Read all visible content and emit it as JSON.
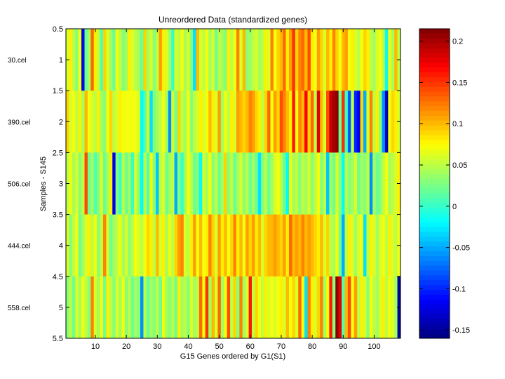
{
  "chart_data": {
    "type": "heatmap",
    "title": "Unreordered Data (standardized genes)",
    "xlabel": "G15 Genes ordered by G1(S1)",
    "ylabel": "Samples - S145",
    "xlim": [
      0.5,
      108.5
    ],
    "ylim": [
      0.5,
      5.5
    ],
    "x_ticks": [
      10,
      20,
      30,
      40,
      50,
      60,
      70,
      80,
      90,
      100
    ],
    "x_tick_labels": [
      "10",
      "20",
      "30",
      "40",
      "50",
      "60",
      "70",
      "80",
      "90",
      "100"
    ],
    "y_ticks": [
      0.5,
      1,
      1.5,
      2,
      2.5,
      3,
      3.5,
      4,
      4.5,
      5,
      5.5
    ],
    "y_tick_labels": [
      "0.5",
      "1",
      "1.5",
      "2",
      "2.5",
      "3",
      "3.5",
      "4",
      "4.5",
      "5",
      "5.5"
    ],
    "row_labels": [
      "30.cel",
      "390.cel",
      "506.cel",
      "444.cel",
      "558.cel"
    ],
    "colorbar": {
      "colormap": "jet",
      "min": -0.16,
      "max": 0.215,
      "ticks": [
        0.2,
        0.15,
        0.1,
        0.05,
        0,
        -0.05,
        -0.1,
        -0.15
      ],
      "tick_labels": [
        "0.2",
        "0.15",
        "0.1",
        "0.05",
        "0",
        "-0.05",
        "-0.1",
        "-0.15"
      ]
    },
    "num_genes": 108,
    "values": [
      [
        0.06,
        0.08,
        0.05,
        0.03,
        0.07,
        -0.12,
        0.02,
        0.04,
        0.13,
        0.08,
        0.05,
        0.01,
        0.09,
        0.06,
        0.04,
        0.02,
        0.07,
        0.05,
        0.03,
        0.04,
        0.08,
        0.06,
        0.05,
        0.04,
        0.02,
        0.09,
        0.04,
        0.06,
        0.03,
        0.05,
        0.11,
        0.08,
        0.06,
        0.04,
        0.0,
        0.06,
        0.05,
        0.07,
        0.04,
        0.06,
        0.03,
        -0.03,
        0.1,
        0.06,
        0.05,
        0.07,
        0.04,
        0.06,
        0.02,
        0.05,
        0.04,
        0.03,
        0.08,
        0.05,
        0.07,
        0.12,
        0.06,
        0.1,
        0.03,
        0.04,
        0.05,
        0.06,
        0.04,
        0.05,
        0.08,
        0.06,
        0.12,
        0.07,
        0.09,
        0.1,
        0.13,
        0.08,
        0.11,
        0.15,
        0.09,
        0.12,
        0.13,
        0.1,
        0.14,
        0.08,
        0.07,
        0.11,
        0.09,
        0.06,
        0.1,
        0.08,
        0.12,
        0.09,
        0.07,
        0.1,
        0.11,
        0.07,
        0.08,
        0.06,
        0.05,
        0.07,
        0.09,
        0.08,
        0.05,
        0.04,
        0.06,
        0.07,
        0.05,
        -0.02,
        0.07,
        0.04,
        0.1,
        0.05
      ],
      [
        0.09,
        0.06,
        0.07,
        0.05,
        0.08,
        0.04,
        0.1,
        0.07,
        0.06,
        0.05,
        0.08,
        0.04,
        0.03,
        0.07,
        0.09,
        0.05,
        0.06,
        0.08,
        0.07,
        0.07,
        0.07,
        0.07,
        0.07,
        0.06,
        -0.02,
        0.01,
        0.06,
        -0.03,
        0.03,
        0.04,
        0.05,
        0.07,
        0.04,
        -0.06,
        0.06,
        0.02,
        0.09,
        0.05,
        0.04,
        0.07,
        0.03,
        0.05,
        0.06,
        0.08,
        0.06,
        0.07,
        0.1,
        0.08,
        0.06,
        0.11,
        0.04,
        0.07,
        0.05,
        0.08,
        0.06,
        0.11,
        0.1,
        0.09,
        0.1,
        0.12,
        0.11,
        0.09,
        0.08,
        0.05,
        0.09,
        0.13,
        0.07,
        0.11,
        0.09,
        0.14,
        0.12,
        0.1,
        0.08,
        0.16,
        0.07,
        0.12,
        0.1,
        0.17,
        0.09,
        0.13,
        0.05,
        0.18,
        0.1,
        0.06,
        0.14,
        0.19,
        0.2,
        0.21,
        0.02,
        0.15,
        0.0,
        -0.08,
        0.05,
        -0.1,
        -0.12,
        0.09,
        -0.05,
        0.06,
        0.12,
        0.05,
        0.08,
        0.03,
        -0.06,
        -0.14,
        0.07,
        0.09,
        0.08,
        0.06
      ],
      [
        0.05,
        0.07,
        0.04,
        0.06,
        0.03,
        0.05,
        0.14,
        0.02,
        0.04,
        0.01,
        0.03,
        0.06,
        0.02,
        0.04,
        0.08,
        -0.12,
        0.03,
        0.0,
        0.05,
        0.02,
        0.04,
        0.0,
        0.06,
        0.03,
        -0.02,
        0.05,
        0.01,
        0.07,
        0.03,
        -0.04,
        0.05,
        0.06,
        0.02,
        0.04,
        0.05,
        -0.05,
        0.03,
        0.0,
        0.04,
        0.07,
        0.05,
        0.02,
        0.03,
        -0.02,
        0.06,
        0.04,
        0.07,
        0.03,
        0.05,
        0.02,
        0.04,
        0.09,
        0.03,
        0.05,
        0.02,
        0.04,
        0.06,
        0.03,
        0.05,
        0.02,
        0.04,
        0.02,
        -0.03,
        0.03,
        0.05,
        0.02,
        0.04,
        0.06,
        0.07,
        0.05,
        0.02,
        -0.02,
        0.07,
        0.04,
        0.05,
        0.03,
        0.05,
        0.04,
        0.06,
        0.03,
        0.05,
        0.07,
        0.03,
        0.05,
        -0.04,
        0.04,
        0.02,
        0.06,
        0.03,
        -0.02,
        0.05,
        0.03,
        0.04,
        0.06,
        0.02,
        0.04,
        0.03,
        0.05,
        -0.06,
        0.04,
        0.02,
        0.03,
        0.05,
        0.07,
        0.04,
        0.05,
        0.06,
        0.08
      ],
      [
        0.06,
        0.03,
        0.05,
        0.07,
        0.02,
        0.04,
        0.06,
        0.08,
        0.05,
        0.07,
        0.03,
        0.05,
        0.12,
        0.06,
        0.02,
        0.04,
        0.05,
        0.07,
        0.04,
        0.06,
        0.03,
        0.05,
        0.07,
        0.06,
        0.05,
        0.07,
        0.09,
        0.08,
        0.05,
        0.1,
        0.06,
        0.08,
        0.04,
        0.07,
        0.05,
        0.09,
        0.11,
        0.12,
        0.06,
        0.05,
        0.08,
        0.11,
        0.07,
        0.1,
        0.07,
        0.08,
        0.12,
        0.09,
        0.06,
        0.11,
        0.08,
        0.1,
        0.07,
        0.09,
        0.12,
        0.08,
        0.1,
        0.07,
        0.11,
        0.09,
        0.11,
        0.08,
        0.1,
        0.06,
        0.09,
        0.1,
        0.1,
        0.11,
        0.1,
        0.09,
        0.11,
        0.08,
        0.13,
        0.1,
        0.11,
        0.1,
        0.12,
        0.1,
        0.11,
        0.1,
        0.09,
        0.08,
        0.1,
        0.06,
        0.09,
        0.05,
        0.04,
        0.07,
        0.02,
        -0.05,
        0.05,
        0.08,
        0.06,
        0.04,
        0.06,
        0.07,
        -0.03,
        0.05,
        0.08,
        0.06,
        0.04,
        0.06,
        0.07,
        0.05,
        0.08,
        0.06,
        0.05,
        0.07
      ],
      [
        0.03,
        0.05,
        0.02,
        0.06,
        0.04,
        0.07,
        0.05,
        0.03,
        0.12,
        0.06,
        0.04,
        0.07,
        0.02,
        0.08,
        0.05,
        0.03,
        0.06,
        0.04,
        0.07,
        0.03,
        0.05,
        0.02,
        0.04,
        0.03,
        -0.06,
        0.05,
        0.02,
        0.04,
        0.03,
        0.05,
        0.02,
        0.07,
        0.04,
        0.03,
        0.05,
        0.02,
        0.08,
        0.04,
        0.05,
        0.03,
        0.06,
        0.04,
        0.05,
        0.13,
        0.07,
        0.15,
        0.04,
        0.1,
        0.06,
        0.13,
        0.04,
        0.07,
        0.14,
        0.05,
        0.09,
        0.03,
        0.12,
        0.04,
        0.06,
        0.16,
        0.05,
        0.09,
        0.07,
        0.05,
        0.08,
        0.06,
        0.07,
        0.06,
        0.07,
        0.08,
        0.06,
        0.1,
        0.07,
        0.09,
        0.06,
        0.13,
        0.07,
        -0.03,
        0.12,
        0.08,
        0.06,
        0.09,
        0.12,
        0.04,
        0.07,
        0.16,
        0.03,
        0.21,
        0.18,
        0.01,
        0.1,
        0.14,
        0.07,
        0.11,
        0.05,
        0.08,
        0.06,
        0.03,
        0.07,
        0.05,
        0.04,
        0.06,
        0.08,
        0.05,
        0.07,
        0.06,
        0.04,
        -0.15
      ]
    ]
  }
}
